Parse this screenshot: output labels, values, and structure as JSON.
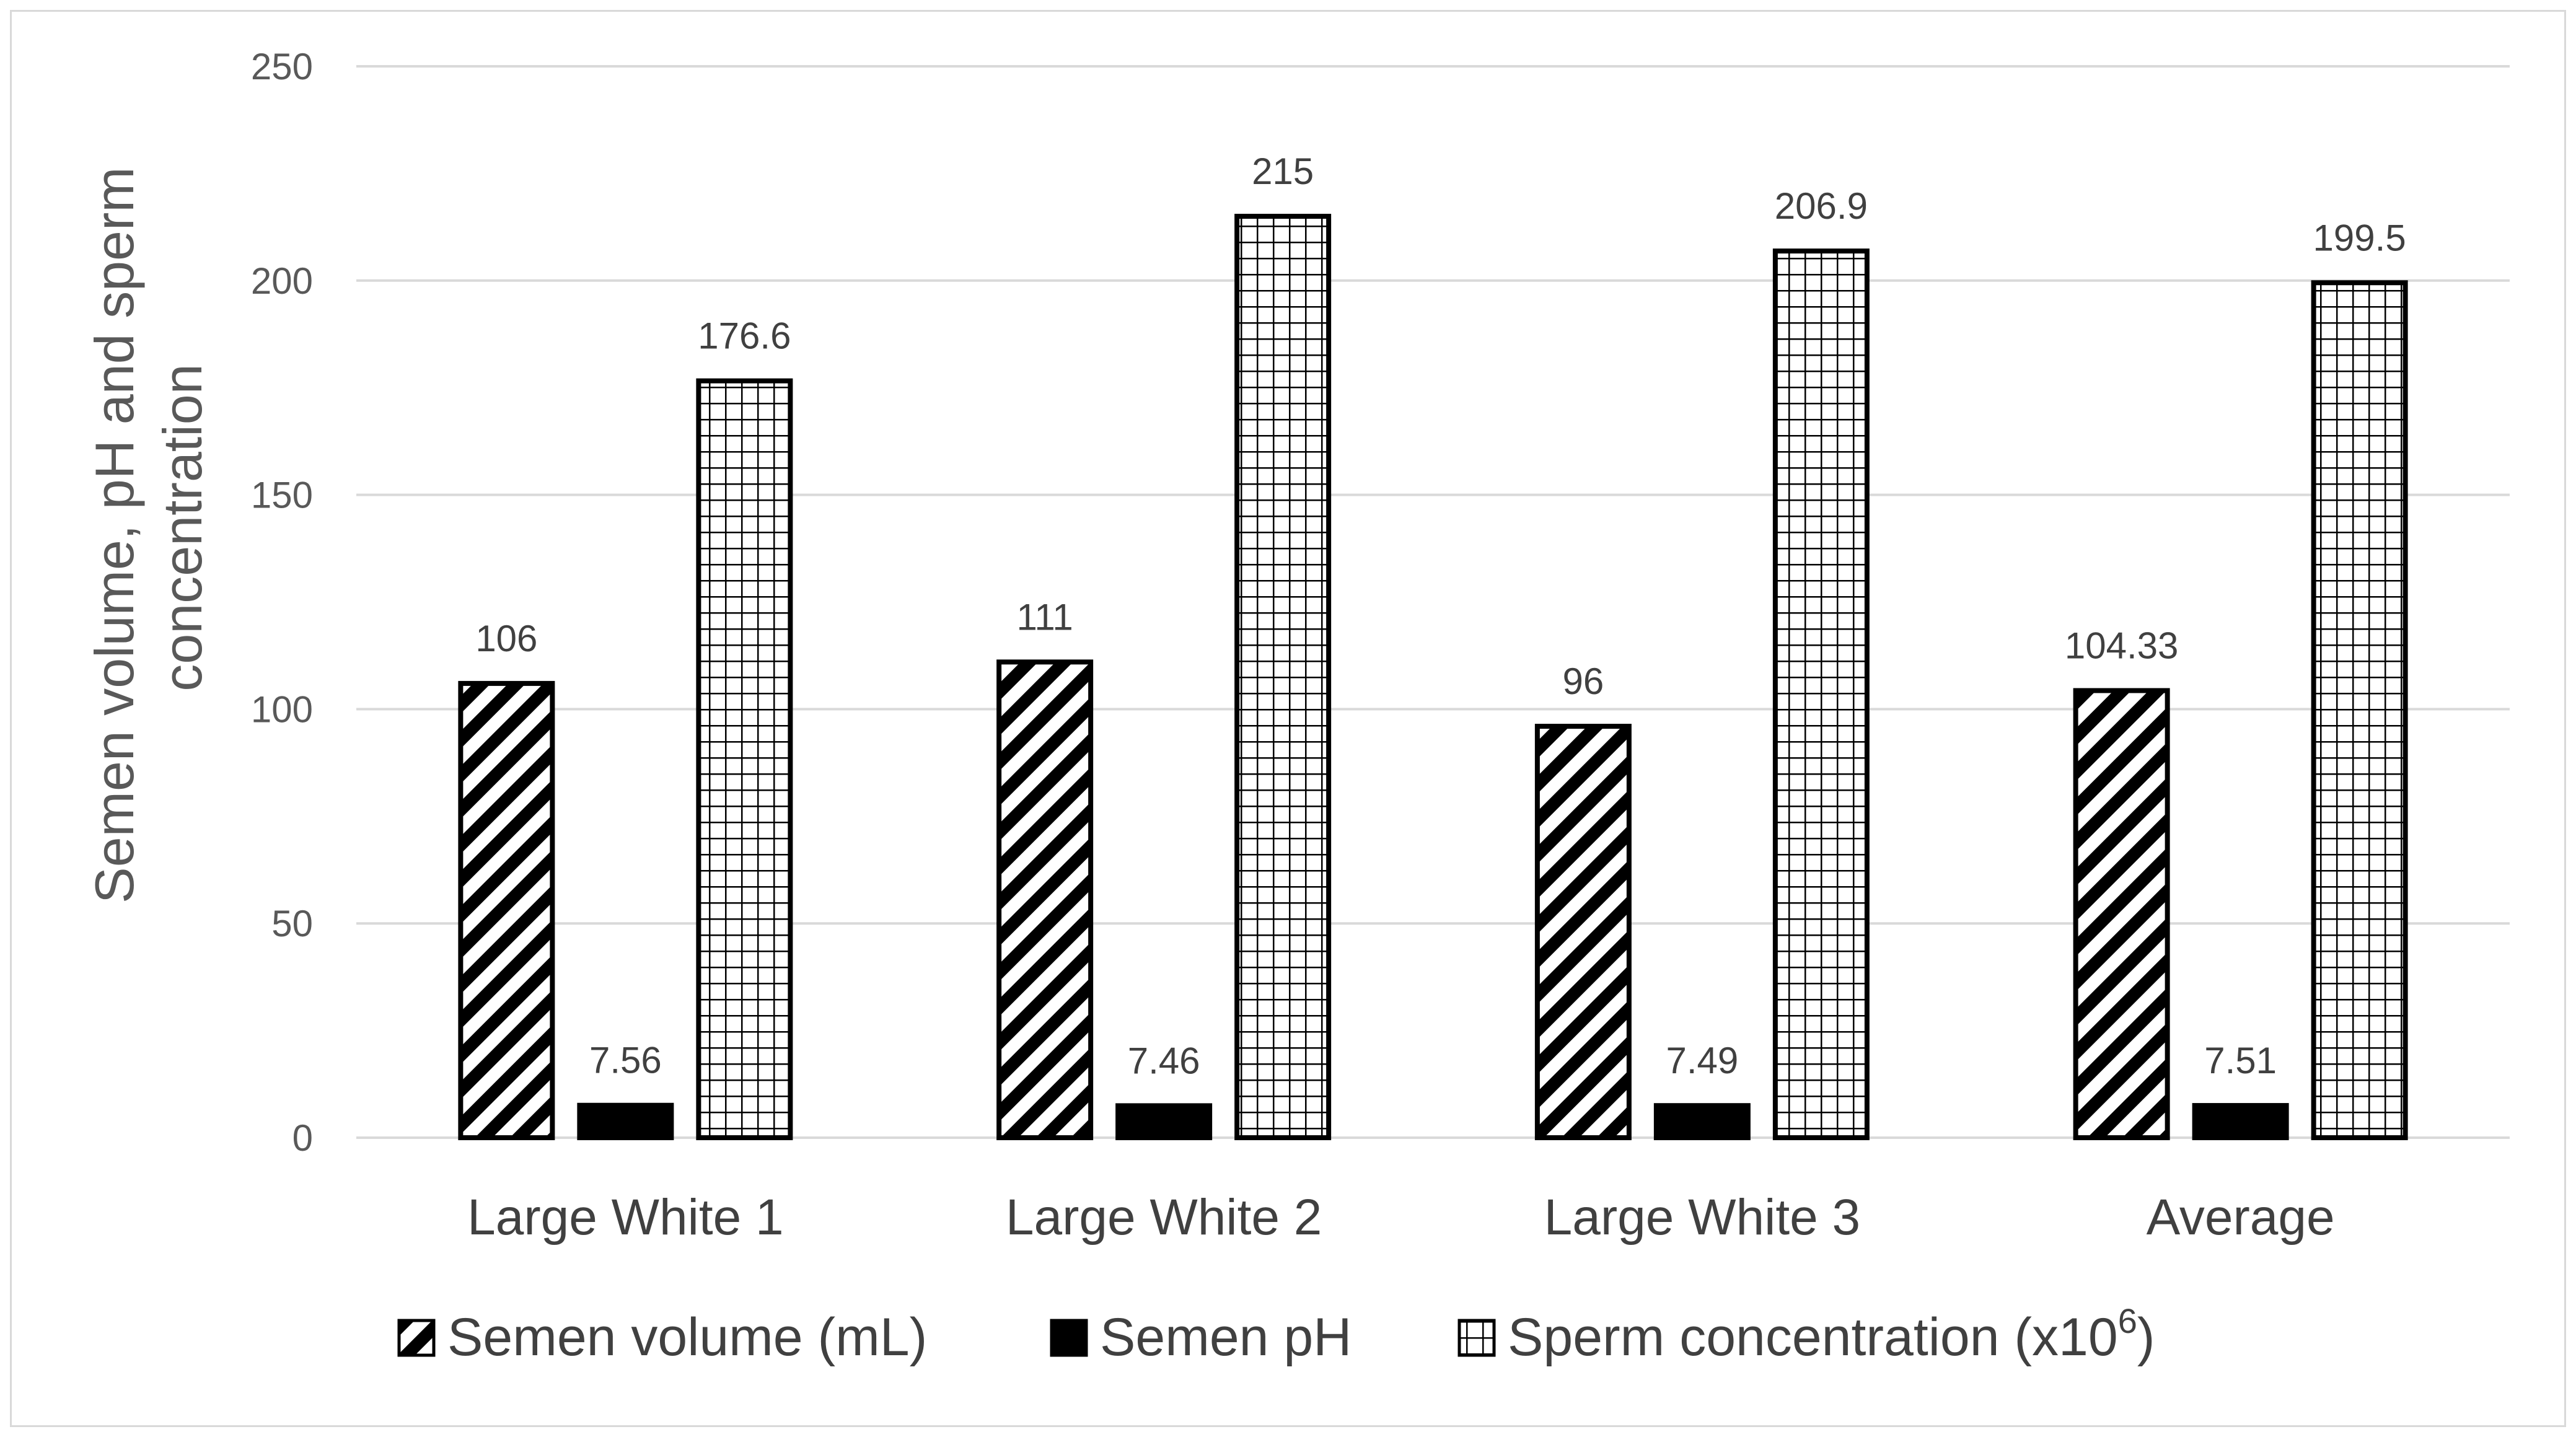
{
  "chart_data": {
    "type": "bar",
    "title": "",
    "xlabel": "",
    "ylabel": "Semen volume, pH and sperm concentration",
    "ylabel_lines": [
      "Semen volume, pH and sperm",
      "concentration"
    ],
    "ylim": [
      0,
      250
    ],
    "yticks": [
      0,
      50,
      100,
      150,
      200,
      250
    ],
    "grid": true,
    "legend_position": "bottom",
    "categories": [
      "Large White 1",
      "Large White 2",
      "Large White 3",
      "Average"
    ],
    "series": [
      {
        "name": "Semen volume (mL)",
        "legend_parts": [
          "Semen volume (mL)"
        ],
        "pattern": "diagonal-hatch",
        "values": [
          106,
          111,
          96,
          104.33
        ],
        "labels": [
          "106",
          "111",
          "96",
          "104.33"
        ]
      },
      {
        "name": "Semen pH",
        "legend_parts": [
          "Semen pH"
        ],
        "pattern": "solid-black",
        "values": [
          7.56,
          7.46,
          7.49,
          7.51
        ],
        "labels": [
          "7.56",
          "7.46",
          "7.49",
          "7.51"
        ]
      },
      {
        "name": "Sperm concentration (x10⁶)",
        "legend_parts": [
          "Sperm concentration (x10",
          "6",
          ")"
        ],
        "pattern": "grid",
        "values": [
          176.6,
          215,
          206.9,
          199.5
        ],
        "labels": [
          "176.6",
          "215",
          "206.9",
          "199.5"
        ]
      }
    ]
  },
  "colors": {
    "gridline": "#d9d9d9",
    "bar_stroke": "#000000",
    "axis_text": "#595959",
    "label_text": "#404040"
  }
}
